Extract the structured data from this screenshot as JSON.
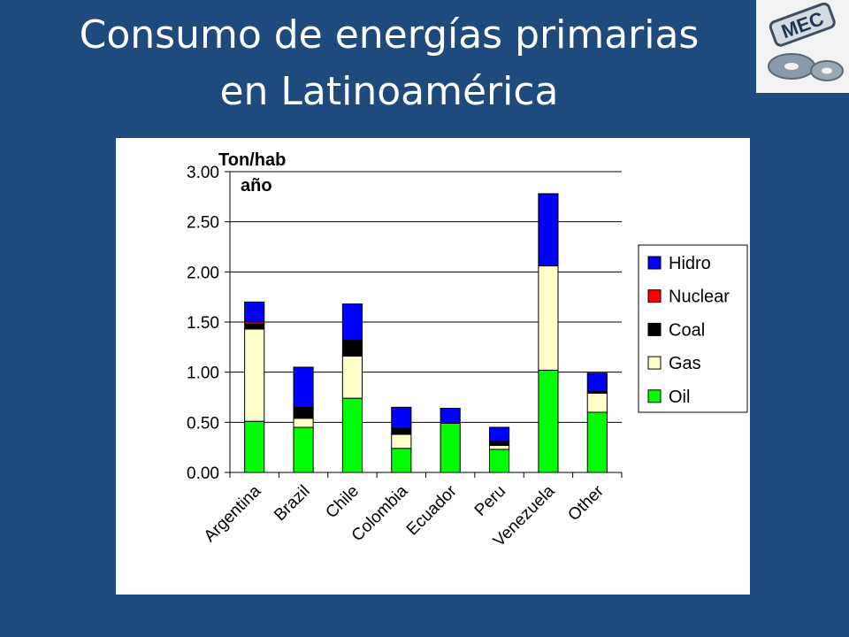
{
  "slide": {
    "title_line1": "Consumo de energías primarias",
    "title_line2": "en Latinoamérica",
    "logo_text": "MEC"
  },
  "chart_data": {
    "type": "bar",
    "stacked": true,
    "title": "",
    "ylabel_line1": "Ton/hab",
    "ylabel_line2": "año",
    "ylim": [
      0,
      3
    ],
    "yticks": [
      "0.00",
      "0.50",
      "1.00",
      "1.50",
      "2.00",
      "2.50",
      "3.00"
    ],
    "grid": true,
    "legend_position": "right",
    "categories": [
      "Argentina",
      "Brazil",
      "Chile",
      "Colombia",
      "Ecuador",
      "Peru",
      "Venezuela",
      "Other"
    ],
    "series": [
      {
        "name": "Oil",
        "color": "#00ff00",
        "values": [
          0.51,
          0.45,
          0.74,
          0.24,
          0.49,
          0.23,
          1.02,
          0.6
        ]
      },
      {
        "name": "Gas",
        "color": "#ffffcc",
        "values": [
          0.92,
          0.09,
          0.42,
          0.14,
          0.0,
          0.04,
          1.04,
          0.19
        ]
      },
      {
        "name": "Coal",
        "color": "#000000",
        "values": [
          0.05,
          0.1,
          0.16,
          0.06,
          0.0,
          0.04,
          0.0,
          0.02
        ]
      },
      {
        "name": "Nuclear",
        "color": "#ff0000",
        "values": [
          0.02,
          0.01,
          0.0,
          0.0,
          0.0,
          0.0,
          0.0,
          0.0
        ]
      },
      {
        "name": "Hidro",
        "color": "#0000ff",
        "values": [
          0.2,
          0.4,
          0.36,
          0.21,
          0.15,
          0.14,
          0.72,
          0.18
        ]
      }
    ],
    "legend_order": [
      "Hidro",
      "Nuclear",
      "Coal",
      "Gas",
      "Oil"
    ]
  }
}
